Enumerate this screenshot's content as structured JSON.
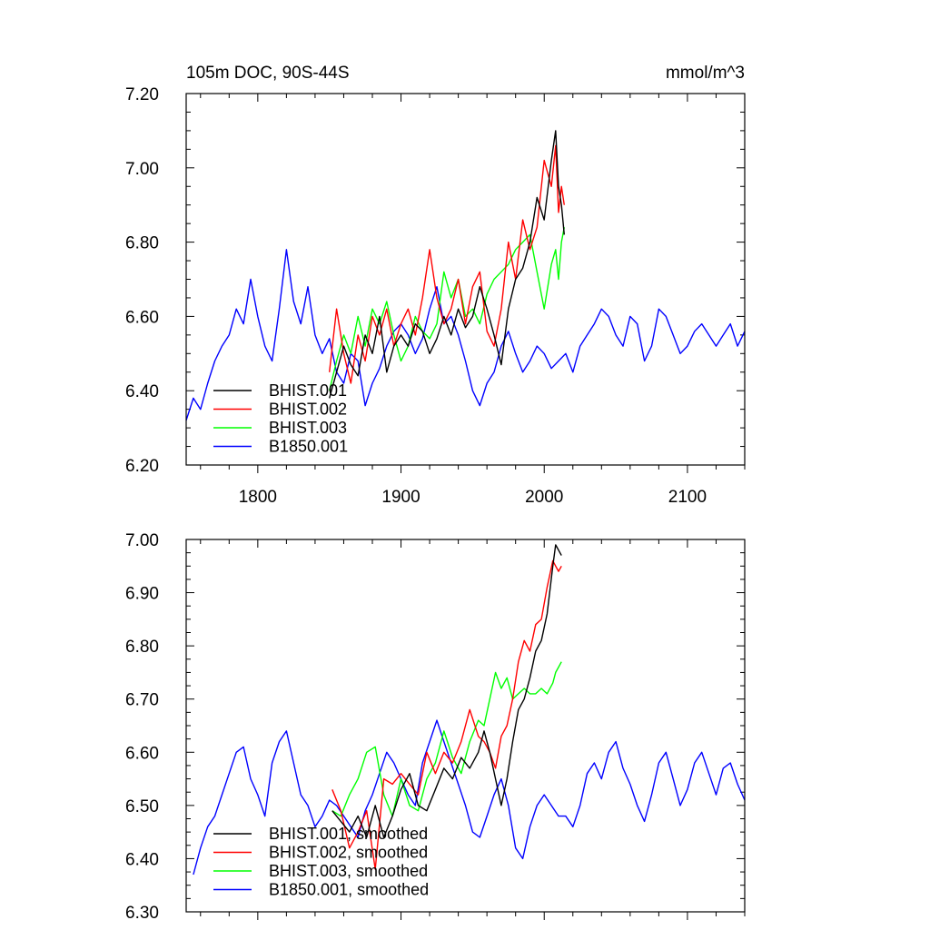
{
  "chart_data": [
    {
      "type": "line",
      "title_left": "105m DOC, 90S-44S",
      "title_right": "mmol/m^3",
      "xlabel": "",
      "ylabel": "",
      "xlim": [
        1750,
        2140
      ],
      "ylim": [
        6.2,
        7.2
      ],
      "x_ticks": [
        1800,
        1900,
        2000,
        2100
      ],
      "x_tick_labels": [
        "1800",
        "1900",
        "2000",
        "2100"
      ],
      "y_ticks": [
        6.2,
        6.4,
        6.6,
        6.8,
        7.0,
        7.2
      ],
      "y_tick_labels": [
        "6.20",
        "6.40",
        "6.60",
        "6.80",
        "7.00",
        "7.20"
      ],
      "legend_position": "bottom-left",
      "series": [
        {
          "name": "BHIST.001",
          "color": "#000000",
          "x": [
            1850,
            1855,
            1860,
            1865,
            1870,
            1875,
            1880,
            1885,
            1890,
            1895,
            1900,
            1905,
            1910,
            1915,
            1920,
            1925,
            1930,
            1935,
            1940,
            1945,
            1950,
            1955,
            1960,
            1965,
            1970,
            1975,
            1980,
            1985,
            1990,
            1995,
            2000,
            2005,
            2008,
            2010,
            2012,
            2014
          ],
          "values": [
            6.38,
            6.45,
            6.52,
            6.47,
            6.44,
            6.55,
            6.5,
            6.6,
            6.45,
            6.52,
            6.55,
            6.52,
            6.58,
            6.56,
            6.5,
            6.54,
            6.6,
            6.55,
            6.62,
            6.57,
            6.6,
            6.68,
            6.62,
            6.55,
            6.47,
            6.62,
            6.7,
            6.73,
            6.8,
            6.92,
            6.86,
            7.02,
            7.1,
            6.95,
            6.9,
            6.82
          ]
        },
        {
          "name": "BHIST.002",
          "color": "#ff0000",
          "x": [
            1850,
            1855,
            1860,
            1865,
            1870,
            1875,
            1880,
            1885,
            1890,
            1895,
            1900,
            1905,
            1910,
            1915,
            1920,
            1925,
            1930,
            1935,
            1940,
            1945,
            1950,
            1955,
            1960,
            1965,
            1970,
            1975,
            1980,
            1985,
            1990,
            1995,
            2000,
            2005,
            2008,
            2010,
            2012,
            2014
          ],
          "values": [
            6.45,
            6.62,
            6.5,
            6.42,
            6.55,
            6.48,
            6.6,
            6.55,
            6.62,
            6.52,
            6.58,
            6.62,
            6.55,
            6.65,
            6.78,
            6.65,
            6.58,
            6.62,
            6.7,
            6.58,
            6.68,
            6.72,
            6.56,
            6.52,
            6.62,
            6.8,
            6.7,
            6.86,
            6.78,
            6.84,
            7.02,
            6.95,
            7.06,
            6.88,
            6.95,
            6.9
          ]
        },
        {
          "name": "BHIST.003",
          "color": "#00ff00",
          "x": [
            1850,
            1855,
            1860,
            1865,
            1870,
            1875,
            1880,
            1885,
            1890,
            1895,
            1900,
            1905,
            1910,
            1915,
            1920,
            1925,
            1930,
            1935,
            1940,
            1945,
            1950,
            1955,
            1960,
            1965,
            1970,
            1975,
            1980,
            1985,
            1990,
            1995,
            2000,
            2005,
            2008,
            2010,
            2012,
            2014
          ],
          "values": [
            6.4,
            6.48,
            6.55,
            6.5,
            6.6,
            6.52,
            6.62,
            6.58,
            6.64,
            6.55,
            6.48,
            6.52,
            6.6,
            6.56,
            6.54,
            6.58,
            6.72,
            6.65,
            6.7,
            6.6,
            6.62,
            6.58,
            6.66,
            6.7,
            6.72,
            6.74,
            6.78,
            6.8,
            6.82,
            6.72,
            6.62,
            6.74,
            6.78,
            6.7,
            6.8,
            6.84
          ]
        },
        {
          "name": "B1850.001",
          "color": "#0000ff",
          "x": [
            1750,
            1755,
            1760,
            1765,
            1770,
            1775,
            1780,
            1785,
            1790,
            1795,
            1800,
            1805,
            1810,
            1815,
            1820,
            1825,
            1830,
            1835,
            1840,
            1845,
            1850,
            1855,
            1860,
            1865,
            1870,
            1875,
            1880,
            1885,
            1890,
            1895,
            1900,
            1905,
            1910,
            1915,
            1920,
            1925,
            1930,
            1935,
            1940,
            1945,
            1950,
            1955,
            1960,
            1965,
            1970,
            1975,
            1980,
            1985,
            1990,
            1995,
            2000,
            2005,
            2010,
            2015,
            2020,
            2025,
            2030,
            2035,
            2040,
            2045,
            2050,
            2055,
            2060,
            2065,
            2070,
            2075,
            2080,
            2085,
            2090,
            2095,
            2100,
            2105,
            2110,
            2115,
            2120,
            2125,
            2130,
            2135,
            2140
          ],
          "values": [
            6.32,
            6.38,
            6.35,
            6.42,
            6.48,
            6.52,
            6.55,
            6.62,
            6.58,
            6.7,
            6.6,
            6.52,
            6.48,
            6.62,
            6.78,
            6.64,
            6.58,
            6.68,
            6.55,
            6.5,
            6.54,
            6.45,
            6.42,
            6.5,
            6.48,
            6.36,
            6.42,
            6.46,
            6.52,
            6.56,
            6.58,
            6.55,
            6.5,
            6.54,
            6.62,
            6.68,
            6.58,
            6.6,
            6.55,
            6.48,
            6.4,
            6.36,
            6.42,
            6.45,
            6.52,
            6.56,
            6.5,
            6.45,
            6.48,
            6.52,
            6.5,
            6.46,
            6.48,
            6.5,
            6.45,
            6.52,
            6.55,
            6.58,
            6.62,
            6.6,
            6.55,
            6.52,
            6.6,
            6.58,
            6.48,
            6.52,
            6.62,
            6.6,
            6.55,
            6.5,
            6.52,
            6.56,
            6.58,
            6.55,
            6.52,
            6.55,
            6.58,
            6.52,
            6.56
          ]
        }
      ]
    },
    {
      "type": "line",
      "title_left": "",
      "title_right": "",
      "xlabel": "",
      "ylabel": "",
      "xlim": [
        1750,
        2140
      ],
      "ylim": [
        6.3,
        7.0
      ],
      "x_ticks": [
        1800,
        1900,
        2000,
        2100
      ],
      "x_tick_labels": [],
      "y_ticks": [
        6.3,
        6.4,
        6.5,
        6.6,
        6.7,
        6.8,
        6.9,
        7.0
      ],
      "y_tick_labels": [
        "6.30",
        "6.40",
        "6.50",
        "6.60",
        "6.70",
        "6.80",
        "6.90",
        "7.00"
      ],
      "legend_position": "bottom-left",
      "series": [
        {
          "name": "BHIST.001, smoothed",
          "color": "#000000",
          "x": [
            1852,
            1858,
            1864,
            1870,
            1876,
            1882,
            1888,
            1894,
            1900,
            1906,
            1912,
            1918,
            1924,
            1930,
            1936,
            1942,
            1948,
            1954,
            1958,
            1962,
            1966,
            1970,
            1974,
            1978,
            1982,
            1986,
            1990,
            1994,
            1998,
            2002,
            2006,
            2008,
            2010,
            2012
          ],
          "values": [
            6.49,
            6.47,
            6.45,
            6.48,
            6.44,
            6.5,
            6.44,
            6.48,
            6.53,
            6.56,
            6.5,
            6.49,
            6.53,
            6.57,
            6.55,
            6.59,
            6.57,
            6.6,
            6.64,
            6.6,
            6.55,
            6.5,
            6.55,
            6.62,
            6.68,
            6.7,
            6.74,
            6.79,
            6.81,
            6.86,
            6.95,
            6.99,
            6.98,
            6.97
          ]
        },
        {
          "name": "BHIST.002, smoothed",
          "color": "#ff0000",
          "x": [
            1852,
            1858,
            1864,
            1870,
            1876,
            1882,
            1888,
            1894,
            1900,
            1906,
            1912,
            1918,
            1924,
            1930,
            1936,
            1942,
            1948,
            1954,
            1958,
            1962,
            1966,
            1970,
            1974,
            1978,
            1982,
            1986,
            1990,
            1994,
            1998,
            2002,
            2006,
            2008,
            2010,
            2012
          ],
          "values": [
            6.53,
            6.49,
            6.42,
            6.45,
            6.49,
            6.38,
            6.55,
            6.54,
            6.56,
            6.54,
            6.52,
            6.6,
            6.56,
            6.6,
            6.58,
            6.62,
            6.68,
            6.63,
            6.62,
            6.6,
            6.57,
            6.63,
            6.65,
            6.7,
            6.77,
            6.81,
            6.79,
            6.84,
            6.85,
            6.91,
            6.96,
            6.95,
            6.94,
            6.95
          ]
        },
        {
          "name": "BHIST.003, smoothed",
          "color": "#00ff00",
          "x": [
            1852,
            1858,
            1864,
            1870,
            1876,
            1882,
            1888,
            1894,
            1900,
            1906,
            1912,
            1918,
            1924,
            1930,
            1936,
            1942,
            1948,
            1954,
            1958,
            1962,
            1966,
            1970,
            1974,
            1978,
            1982,
            1986,
            1990,
            1994,
            1998,
            2002,
            2006,
            2008,
            2010,
            2012
          ],
          "values": [
            6.49,
            6.48,
            6.52,
            6.55,
            6.6,
            6.61,
            6.52,
            6.48,
            6.55,
            6.5,
            6.49,
            6.55,
            6.58,
            6.64,
            6.59,
            6.56,
            6.62,
            6.66,
            6.65,
            6.7,
            6.75,
            6.72,
            6.74,
            6.7,
            6.71,
            6.72,
            6.71,
            6.71,
            6.72,
            6.71,
            6.73,
            6.75,
            6.76,
            6.77
          ]
        },
        {
          "name": "B1850.001, smoothed",
          "color": "#0000ff",
          "x": [
            1755,
            1760,
            1765,
            1770,
            1775,
            1780,
            1785,
            1790,
            1795,
            1800,
            1805,
            1810,
            1815,
            1820,
            1825,
            1830,
            1835,
            1840,
            1845,
            1850,
            1855,
            1860,
            1865,
            1870,
            1875,
            1880,
            1885,
            1890,
            1895,
            1900,
            1905,
            1910,
            1915,
            1920,
            1925,
            1930,
            1935,
            1940,
            1945,
            1950,
            1955,
            1960,
            1965,
            1970,
            1975,
            1980,
            1985,
            1990,
            1995,
            2000,
            2005,
            2010,
            2015,
            2020,
            2025,
            2030,
            2035,
            2040,
            2045,
            2050,
            2055,
            2060,
            2065,
            2070,
            2075,
            2080,
            2085,
            2090,
            2095,
            2100,
            2105,
            2110,
            2115,
            2120,
            2125,
            2130,
            2135,
            2140
          ],
          "values": [
            6.37,
            6.42,
            6.46,
            6.48,
            6.52,
            6.56,
            6.6,
            6.61,
            6.55,
            6.52,
            6.48,
            6.58,
            6.62,
            6.64,
            6.58,
            6.52,
            6.5,
            6.46,
            6.48,
            6.51,
            6.5,
            6.48,
            6.46,
            6.44,
            6.49,
            6.52,
            6.56,
            6.6,
            6.58,
            6.55,
            6.52,
            6.5,
            6.58,
            6.62,
            6.66,
            6.62,
            6.58,
            6.54,
            6.5,
            6.45,
            6.44,
            6.48,
            6.52,
            6.55,
            6.5,
            6.42,
            6.4,
            6.46,
            6.5,
            6.52,
            6.5,
            6.48,
            6.48,
            6.46,
            6.5,
            6.56,
            6.58,
            6.55,
            6.6,
            6.62,
            6.57,
            6.54,
            6.5,
            6.47,
            6.52,
            6.58,
            6.6,
            6.55,
            6.5,
            6.53,
            6.58,
            6.6,
            6.56,
            6.52,
            6.57,
            6.58,
            6.54,
            6.51
          ]
        }
      ]
    }
  ]
}
